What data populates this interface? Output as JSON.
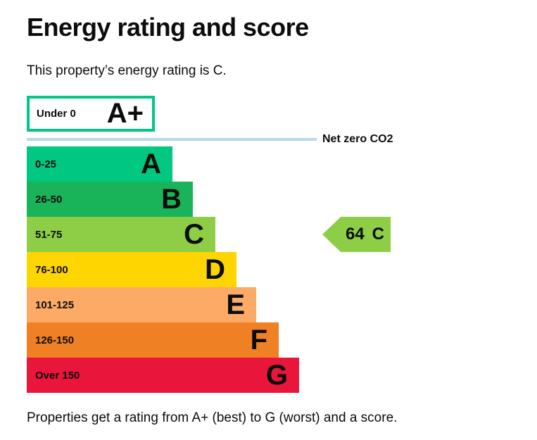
{
  "page": {
    "title": "Energy rating and score",
    "subtitle": "This property’s energy rating is C.",
    "footer": "Properties get a rating from A+ (best) to G (worst) and a score."
  },
  "net_zero": {
    "label": "Net zero CO2",
    "line_color": "#b5dce3"
  },
  "bands": [
    {
      "letter": "A+",
      "range": "Under 0",
      "color": "#00c781"
    },
    {
      "letter": "A",
      "range": "0-25",
      "color": "#00c781"
    },
    {
      "letter": "B",
      "range": "26-50",
      "color": "#19b459"
    },
    {
      "letter": "C",
      "range": "51-75",
      "color": "#8dce46"
    },
    {
      "letter": "D",
      "range": "76-100",
      "color": "#ffd500"
    },
    {
      "letter": "E",
      "range": "101-125",
      "color": "#fcaa65"
    },
    {
      "letter": "F",
      "range": "126-150",
      "color": "#ef8023"
    },
    {
      "letter": "G",
      "range": "Over 150",
      "color": "#e9153b"
    }
  ],
  "pointer": {
    "score": "64",
    "band": "C",
    "color": "#8dce46"
  },
  "text_color": "#0b0c0c",
  "chart_data": {
    "type": "bar",
    "title": "Energy rating and score",
    "subtitle": "This property’s energy rating is C.",
    "categories": [
      "A+",
      "A",
      "B",
      "C",
      "D",
      "E",
      "F",
      "G"
    ],
    "score_ranges": [
      "Under 0",
      "0-25",
      "26-50",
      "51-75",
      "76-100",
      "101-125",
      "126-150",
      "Over 150"
    ],
    "bar_colors": [
      "#ffffff",
      "#00c781",
      "#19b459",
      "#8dce46",
      "#ffd500",
      "#fcaa65",
      "#ef8023",
      "#e9153b"
    ],
    "bar_relative_widths": [
      182,
      207,
      236,
      268,
      298,
      326,
      358,
      387
    ],
    "current_score": 64,
    "current_rating": "C",
    "annotations": [
      "Net zero CO2"
    ],
    "orientation": "horizontal",
    "legend": "none",
    "grid": false,
    "note": "Properties get a rating from A+ (best) to G (worst) and a score."
  }
}
